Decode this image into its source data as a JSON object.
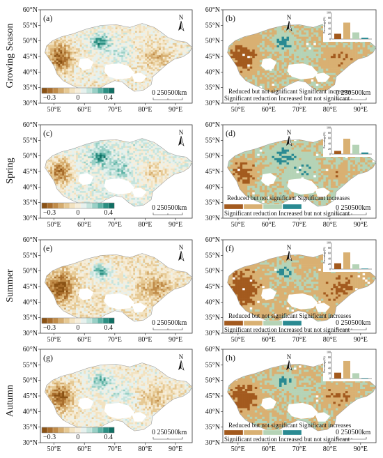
{
  "row_labels": [
    "Growing Season",
    "Spring",
    "Summer",
    "Autumn"
  ],
  "panel_labels": [
    "(a)",
    "(b)",
    "(c)",
    "(d)",
    "(e)",
    "(f)",
    "(g)",
    "(h)"
  ],
  "lat_ticks": [
    "60°N",
    "55°N",
    "50°N",
    "45°N",
    "40°N",
    "35°N",
    "30°N"
  ],
  "lon_ticks": [
    "50°E",
    "60°E",
    "70°E",
    "80°E",
    "90°E"
  ],
  "north_label": "N",
  "colorbar": {
    "min": "−0.3",
    "mid": "0",
    "max": "0.4"
  },
  "scalebar": {
    "label": "0 250500km"
  },
  "legend_b": "Reduced but not significant Significant increases Significant reduction Increased but not significant",
  "legend_d": "Significant reduction Increased but not significant",
  "legend_f": "Reduced but not significant Significant increases Significant reduction Increased but not significant",
  "legend_h": "Reduced but not significant Significant increases Significant reduction Increased but not significant",
  "legend_f_bottom": "Significant reduction Increased but not significant",
  "inset": {
    "ylabel": "Percentage(%)",
    "yticks": [
      "100",
      "80",
      "60",
      "40",
      "20",
      "0"
    ],
    "categories": [
      "Significant reduction",
      "Reduced but not significant",
      "Increased but not significant",
      "Significant increases"
    ],
    "values": {
      "b": [
        20,
        62,
        25,
        5
      ],
      "d": [
        12,
        58,
        35,
        6
      ],
      "f": [
        22,
        63,
        18,
        2
      ],
      "h": [
        22,
        66,
        20,
        2
      ]
    }
  },
  "colors": {
    "sig_reduction": "#a35a1e",
    "reduced_ns": "#d9b072",
    "increased_ns": "#b5d3b6",
    "sig_increase": "#2a8a92",
    "ramp": [
      "#8a5215",
      "#a86d2c",
      "#c08b48",
      "#d5ac6e",
      "#e6c994",
      "#f2e2c0",
      "#f6eedb",
      "#e6f1ee",
      "#c5e4dd",
      "#99d0c6",
      "#5fb3a6",
      "#2b8f82",
      "#0f6f63"
    ]
  }
}
